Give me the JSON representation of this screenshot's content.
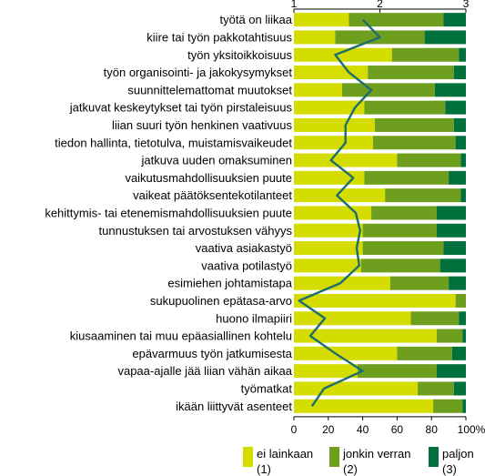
{
  "chart_data": {
    "type": "bar",
    "stacked": true,
    "orientation": "horizontal",
    "categories": [
      "työtä on liikaa",
      "kiire tai työn pakkotahtisuus",
      "työn yksitoikkoisuus",
      "työn organisointi- ja jakokysymykset",
      "suunnittelemattomat muutokset",
      "jatkuvat keskeytykset tai työn pirstaleisuus",
      "liian suuri työn henkinen vaativuus",
      "tiedon hallinta, tietotulva, muistamisvaikeudet",
      "jatkuva uuden omaksuminen",
      "vaikutusmahdollisuuksien puute",
      "vaikeat päätöksentekotilanteet",
      "kehittymis- tai etenemismahdollisuuksien puute",
      "tunnustuksen tai arvostuksen vähyys",
      "vaativa asiakastyö",
      "vaativa potilastyö",
      "esimiehen johtamistapa",
      "sukupuolinen epätasa-arvo",
      "huono ilmapiiri",
      "kiusaaminen tai muu epäasiallinen kohtelu",
      "epävarmuus työn jatkumisesta",
      "vapaa-ajalle jää liian vähän aikaa",
      "työmatkat",
      "ikään liittyvät asenteet"
    ],
    "series": [
      {
        "name": "ei lainkaan\n(1)",
        "color": "#d4dc00",
        "values": [
          32,
          24,
          57,
          43,
          28,
          41,
          47,
          46,
          60,
          41,
          53,
          45,
          40,
          40,
          39,
          56,
          94,
          68,
          83,
          60,
          37,
          72,
          81
        ]
      },
      {
        "name": "jonkin verran\n(2)",
        "color": "#6e9e1e",
        "values": [
          55,
          52,
          39,
          50,
          54,
          47,
          46,
          48,
          37,
          49,
          44,
          38,
          43,
          47,
          46,
          34,
          6,
          28,
          15,
          32,
          46,
          21,
          17
        ]
      },
      {
        "name": "paljon\n(3)",
        "color": "#00703c",
        "values": [
          13,
          24,
          4,
          7,
          18,
          12,
          7,
          6,
          3,
          10,
          3,
          17,
          17,
          13,
          15,
          10,
          0,
          4,
          2,
          8,
          17,
          7,
          2
        ]
      }
    ],
    "mean_line": {
      "color": "#1f6e6e",
      "values": [
        1.8,
        2.0,
        1.48,
        1.64,
        1.9,
        1.71,
        1.6,
        1.6,
        1.43,
        1.69,
        1.5,
        1.72,
        1.77,
        1.73,
        1.76,
        1.54,
        1.06,
        1.36,
        1.19,
        1.48,
        1.8,
        1.35,
        1.21
      ]
    },
    "x_axis_bottom": {
      "ticks": [
        "0",
        "20",
        "40",
        "60",
        "80",
        "100%"
      ],
      "range": [
        0,
        100
      ]
    },
    "x_axis_top": {
      "ticks": [
        "1",
        "2",
        "3"
      ],
      "range": [
        1,
        3
      ]
    },
    "legend_position": "bottom",
    "grid": false
  }
}
